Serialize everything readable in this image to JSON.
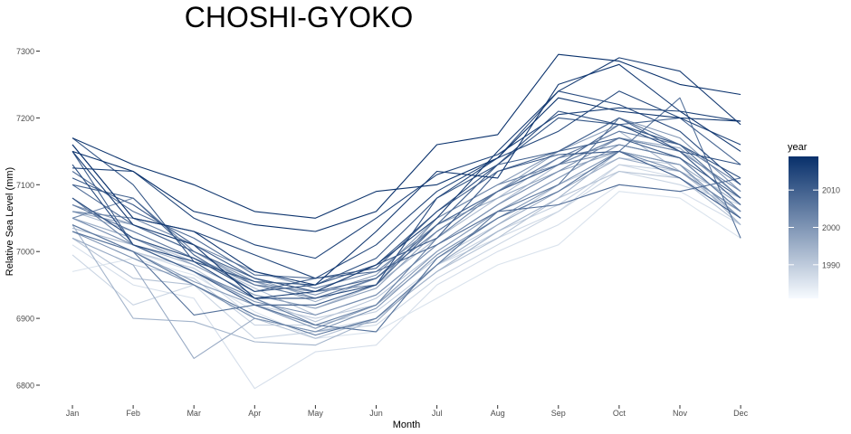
{
  "chart_data": {
    "type": "line",
    "title": "CHOSHI-GYOKO",
    "xlabel": "Month",
    "ylabel": "Relative Sea Level (mm)",
    "categories": [
      "Jan",
      "Feb",
      "Mar",
      "Apr",
      "May",
      "Jun",
      "Jul",
      "Aug",
      "Sep",
      "Oct",
      "Nov",
      "Dec"
    ],
    "ylim": [
      6780,
      7315
    ],
    "yticks": [
      6800,
      6900,
      7000,
      7100,
      7200,
      7300
    ],
    "legend": {
      "title": "year",
      "position": "right",
      "range": [
        1981,
        2019
      ],
      "ticks": [
        1990,
        2000,
        2010
      ],
      "color_low": "#f7fbff",
      "color_high": "#08306b"
    },
    "series": [
      {
        "name": "1981",
        "values": [
          6970,
          6990,
          6965,
          6910,
          6870,
          6880,
          6930,
          6980,
          7010,
          7090,
          7080,
          7020
        ]
      },
      {
        "name": "1982",
        "values": [
          7010,
          6950,
          6930,
          6795,
          6850,
          6860,
          6950,
          7000,
          7040,
          7100,
          7090,
          7040
        ]
      },
      {
        "name": "1983",
        "values": [
          7040,
          7000,
          6970,
          6900,
          6880,
          6900,
          6980,
          7020,
          7060,
          7130,
          7110,
          7060
        ]
      },
      {
        "name": "1984",
        "values": [
          6995,
          6920,
          6950,
          6870,
          6880,
          6890,
          6960,
          7010,
          7060,
          7120,
          7100,
          7070
        ]
      },
      {
        "name": "1985",
        "values": [
          7020,
          6980,
          6960,
          6890,
          6890,
          6910,
          6980,
          7030,
          7070,
          7130,
          7120,
          7080
        ]
      },
      {
        "name": "1986",
        "values": [
          7030,
          7000,
          6975,
          6920,
          6900,
          6920,
          6990,
          7040,
          7100,
          7140,
          7130,
          7050
        ]
      },
      {
        "name": "1987",
        "values": [
          7050,
          7020,
          6985,
          6930,
          6895,
          6930,
          7000,
          7060,
          7110,
          7160,
          7140,
          7060
        ]
      },
      {
        "name": "1988",
        "values": [
          7020,
          6960,
          6950,
          6900,
          6870,
          6900,
          6970,
          7020,
          7080,
          7120,
          7110,
          7040
        ]
      },
      {
        "name": "1989",
        "values": [
          7060,
          7030,
          6990,
          6945,
          6905,
          6935,
          7010,
          7070,
          7130,
          7170,
          7150,
          7070
        ]
      },
      {
        "name": "1990",
        "values": [
          7035,
          7010,
          6980,
          6935,
          6915,
          6950,
          7020,
          7080,
          7140,
          7180,
          7120,
          7050
        ]
      },
      {
        "name": "1991",
        "values": [
          7040,
          6900,
          6895,
          6865,
          6860,
          6900,
          6970,
          7030,
          7080,
          7150,
          7130,
          7040
        ]
      },
      {
        "name": "1992",
        "values": [
          7050,
          7020,
          6990,
          6955,
          6925,
          6960,
          7030,
          7090,
          7130,
          7170,
          7155,
          7080
        ]
      },
      {
        "name": "1993",
        "values": [
          7020,
          6980,
          6840,
          6900,
          6880,
          6895,
          6980,
          7040,
          7090,
          7140,
          7120,
          7060
        ]
      },
      {
        "name": "1994",
        "values": [
          7060,
          7040,
          7000,
          6960,
          6930,
          6960,
          7040,
          7080,
          7120,
          7150,
          7130,
          7070
        ]
      },
      {
        "name": "1995",
        "values": [
          7080,
          7020,
          6980,
          6935,
          6915,
          6945,
          7030,
          7090,
          7150,
          7190,
          7160,
          7080
        ]
      },
      {
        "name": "1996",
        "values": [
          7040,
          7000,
          6955,
          6920,
          6885,
          6920,
          7000,
          7060,
          7110,
          7160,
          7140,
          7060
        ]
      },
      {
        "name": "1997",
        "values": [
          7070,
          7040,
          7000,
          6955,
          6935,
          6965,
          7050,
          7100,
          7150,
          7200,
          7170,
          7090
        ]
      },
      {
        "name": "1998",
        "values": [
          7030,
          6990,
          6950,
          6900,
          6880,
          6915,
          6995,
          7050,
          7100,
          7150,
          7130,
          7050
        ]
      },
      {
        "name": "1999",
        "values": [
          7050,
          7010,
          6970,
          6925,
          6905,
          6935,
          7010,
          7070,
          7120,
          7170,
          7150,
          7070
        ]
      },
      {
        "name": "2000",
        "values": [
          7050,
          7080,
          7000,
          6950,
          6940,
          6950,
          7050,
          7100,
          7130,
          7150,
          7120,
          7060
        ]
      },
      {
        "name": "2001",
        "values": [
          7060,
          7050,
          7010,
          6970,
          6945,
          6970,
          7040,
          7090,
          7130,
          7170,
          7150,
          7090
        ]
      },
      {
        "name": "2002",
        "values": [
          7080,
          7010,
          6970,
          6930,
          6890,
          6920,
          7020,
          7090,
          7140,
          7160,
          7140,
          7060
        ]
      },
      {
        "name": "2003",
        "values": [
          7070,
          7030,
          6990,
          6950,
          6930,
          6960,
          7030,
          7090,
          7140,
          7180,
          7160,
          7100
        ]
      },
      {
        "name": "2004",
        "values": [
          7040,
          7000,
          6950,
          6905,
          6875,
          6900,
          6980,
          7060,
          7100,
          7200,
          7160,
          7080
        ]
      },
      {
        "name": "2005",
        "values": [
          7030,
          7000,
          6905,
          6920,
          6890,
          6880,
          6990,
          7050,
          7090,
          7150,
          7230,
          7020
        ]
      },
      {
        "name": "2006",
        "values": [
          7120,
          7060,
          7020,
          6965,
          6960,
          6970,
          7010,
          7060,
          7070,
          7100,
          7090,
          7110
        ]
      },
      {
        "name": "2007",
        "values": [
          7100,
          7040,
          7000,
          6960,
          6940,
          6960,
          7040,
          7090,
          7130,
          7190,
          7200,
          7130
        ]
      },
      {
        "name": "2008",
        "values": [
          7100,
          7080,
          6995,
          6940,
          6960,
          6975,
          7060,
          7120,
          7150,
          7200,
          7150,
          7070
        ]
      },
      {
        "name": "2009",
        "values": [
          7150,
          7010,
          6970,
          6920,
          6920,
          6950,
          7040,
          7130,
          7150,
          7170,
          7140,
          7080
        ]
      },
      {
        "name": "2010",
        "values": [
          7110,
          7070,
          7010,
          6960,
          6940,
          6980,
          7020,
          7120,
          7145,
          7150,
          7110,
          7050
        ]
      },
      {
        "name": "2011",
        "values": [
          7170,
          7100,
          6985,
          6955,
          6950,
          6990,
          7080,
          7130,
          7200,
          7190,
          7160,
          7110
        ]
      },
      {
        "name": "2012",
        "values": [
          7080,
          7020,
          6990,
          6940,
          6950,
          6980,
          7060,
          7130,
          7210,
          7190,
          7150,
          7130
        ]
      },
      {
        "name": "2013",
        "values": [
          7130,
          7010,
          6985,
          6930,
          6930,
          6950,
          7080,
          7140,
          7240,
          7220,
          7180,
          7100
        ]
      },
      {
        "name": "2014",
        "values": [
          7160,
          7050,
          7030,
          6995,
          6960,
          7010,
          7090,
          7140,
          7180,
          7240,
          7200,
          7160
        ]
      },
      {
        "name": "2015",
        "values": [
          7125,
          7120,
          7050,
          7010,
          6990,
          7050,
          7115,
          7145,
          7205,
          7215,
          7210,
          7195
        ]
      },
      {
        "name": "2016",
        "values": [
          7150,
          7040,
          7010,
          6930,
          6940,
          6980,
          7050,
          7150,
          7240,
          7290,
          7270,
          7190
        ]
      },
      {
        "name": "2017",
        "values": [
          7160,
          7050,
          7030,
          6970,
          6950,
          7030,
          7120,
          7110,
          7250,
          7280,
          7210,
          7150
        ]
      },
      {
        "name": "2018",
        "values": [
          7170,
          7130,
          7100,
          7060,
          7050,
          7090,
          7100,
          7140,
          7230,
          7210,
          7200,
          7195
        ]
      },
      {
        "name": "2019",
        "values": [
          7150,
          7120,
          7060,
          7040,
          7030,
          7060,
          7160,
          7175,
          7295,
          7285,
          7250,
          7235
        ]
      }
    ]
  }
}
